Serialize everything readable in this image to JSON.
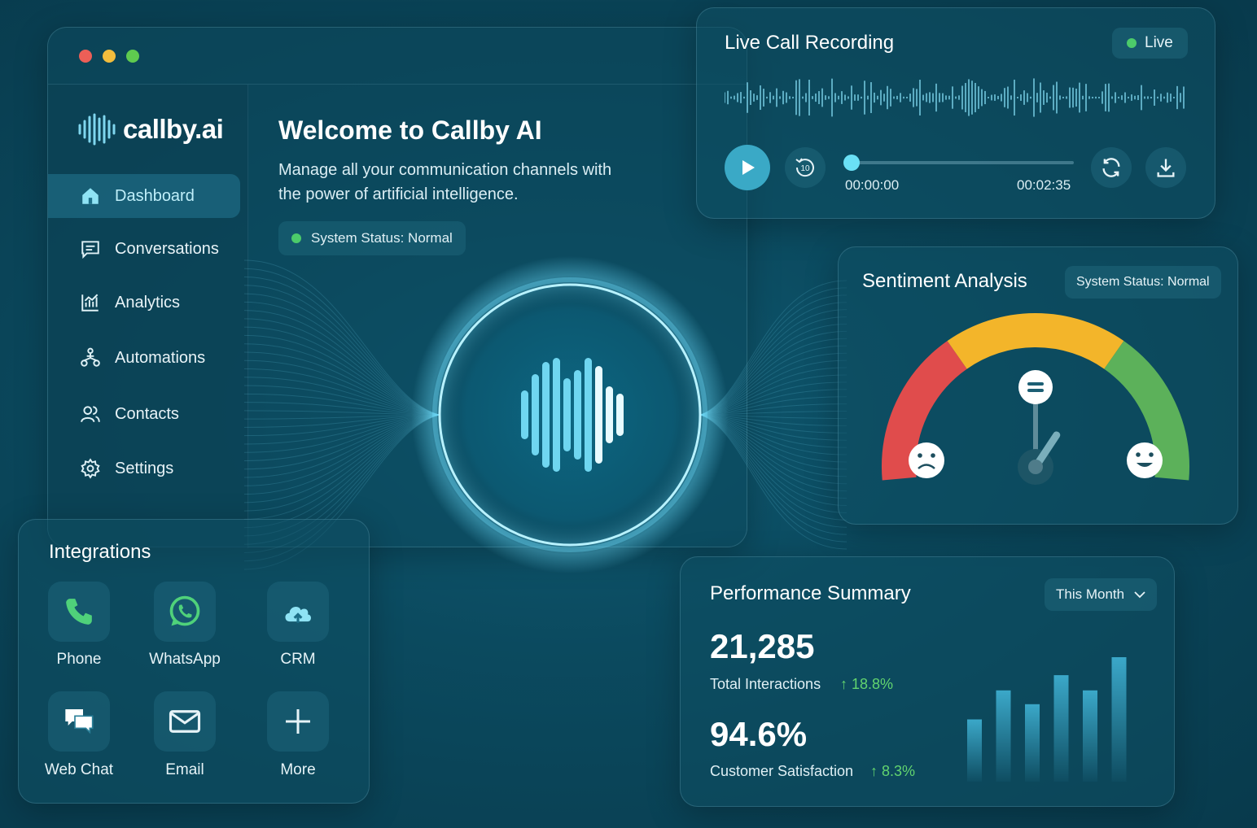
{
  "window": {
    "traffic_lights": [
      "#ec5f57",
      "#f2bd3d",
      "#5fca4f"
    ]
  },
  "brand": {
    "name": "callby.ai"
  },
  "sidebar": {
    "items": [
      {
        "label": "Dashboard",
        "icon": "home-icon",
        "active": true
      },
      {
        "label": "Conversations",
        "icon": "chat-icon",
        "active": false
      },
      {
        "label": "Analytics",
        "icon": "analytics-icon",
        "active": false
      },
      {
        "label": "Automations",
        "icon": "automation-icon",
        "active": false
      },
      {
        "label": "Contacts",
        "icon": "contacts-icon",
        "active": false
      },
      {
        "label": "Settings",
        "icon": "gear-icon",
        "active": false
      }
    ]
  },
  "welcome": {
    "title": "Welcome to Callby AI",
    "subtitle": "Manage all your communication channels with the power of artificial intelligence.",
    "status": "System Status: Normal"
  },
  "live_call": {
    "title": "Live Call Recording",
    "live_label": "Live",
    "current_time": "00:00:00",
    "total_time": "00:02:35",
    "rewind_label": "10",
    "progress": 0
  },
  "sentiment": {
    "title": "Sentiment Analysis",
    "status": "System Status: Normal",
    "level": 0.62,
    "colors": {
      "negative": "#e04c4c",
      "neutral": "#f3b52a",
      "positive": "#5cb15a"
    }
  },
  "integrations": {
    "title": "Integrations",
    "items": [
      {
        "label": "Phone",
        "icon": "phone-icon"
      },
      {
        "label": "WhatsApp",
        "icon": "whatsapp-icon"
      },
      {
        "label": "CRM",
        "icon": "cloud-icon"
      },
      {
        "label": "Web Chat",
        "icon": "web-chat-icon"
      },
      {
        "label": "Email",
        "icon": "email-icon"
      },
      {
        "label": "More",
        "icon": "plus-icon"
      }
    ]
  },
  "performance": {
    "title": "Performance Summary",
    "period": "This Month",
    "metrics": [
      {
        "value": "21,285",
        "label": "Total Interactions",
        "delta": "18.8%"
      },
      {
        "value": "94.6%",
        "label": "Customer Satisfaction",
        "delta": "8.3%"
      }
    ],
    "bars": [
      0.45,
      0.66,
      0.56,
      0.77,
      0.66,
      0.9
    ]
  }
}
